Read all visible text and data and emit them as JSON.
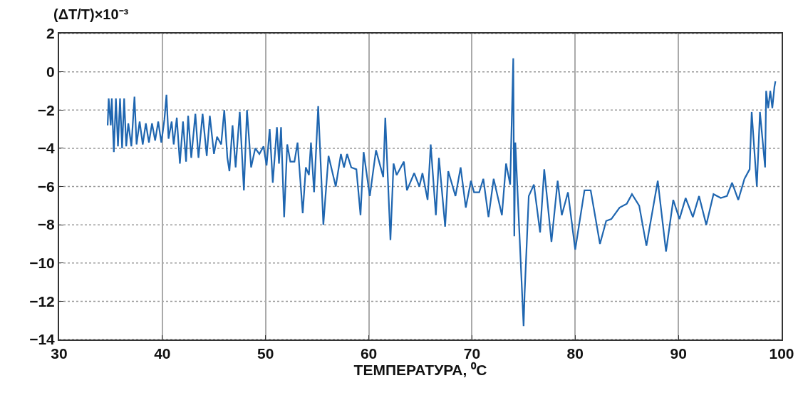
{
  "chart_data": {
    "type": "line",
    "ylabel": "(ΔT/T)×10⁻³",
    "xlabel": "ТЕМПЕРАТУРА, ⁰C",
    "xlim": [
      30,
      100
    ],
    "xticks": [
      30,
      40,
      50,
      60,
      70,
      80,
      90,
      100
    ],
    "ylim": [
      -14,
      2
    ],
    "yticks": [
      -14,
      -12,
      -10,
      -8,
      -6,
      -4,
      -2,
      0,
      2
    ],
    "grid": true,
    "marker": "none",
    "line_style": "solid",
    "series": [
      {
        "color": "#1f66b0",
        "x": [
          34.7,
          34.8,
          35.0,
          35.1,
          35.3,
          35.5,
          35.7,
          35.9,
          36.1,
          36.3,
          36.5,
          36.7,
          37.0,
          37.3,
          37.5,
          37.8,
          38.1,
          38.4,
          38.7,
          39.0,
          39.3,
          39.6,
          39.9,
          40.2,
          40.4,
          40.6,
          40.9,
          41.1,
          41.4,
          41.7,
          42.0,
          42.3,
          42.5,
          42.8,
          43.2,
          43.5,
          43.9,
          44.3,
          44.6,
          45.0,
          45.3,
          45.7,
          46.0,
          46.3,
          46.5,
          46.8,
          47.1,
          47.5,
          47.9,
          48.2,
          48.6,
          49.0,
          49.4,
          49.8,
          50.1,
          50.4,
          50.7,
          51.1,
          51.3,
          51.5,
          51.8,
          52.1,
          52.4,
          52.8,
          53.1,
          53.6,
          53.9,
          54.2,
          54.4,
          54.7,
          55.1,
          55.6,
          56.1,
          56.8,
          57.3,
          57.6,
          57.9,
          58.3,
          58.8,
          59.2,
          59.5,
          60.1,
          60.7,
          61.4,
          61.6,
          62.1,
          62.4,
          62.7,
          63.4,
          63.7,
          64.4,
          64.9,
          65.2,
          65.7,
          66.0,
          66.5,
          66.8,
          67.4,
          67.7,
          68.4,
          68.9,
          69.4,
          69.9,
          70.2,
          70.7,
          71.1,
          71.6,
          72.1,
          72.9,
          73.3,
          73.7,
          74.0,
          74.1,
          74.2,
          75.0,
          75.1,
          75.5,
          76.0,
          76.6,
          77.0,
          77.7,
          78.3,
          78.7,
          79.3,
          80.0,
          80.9,
          81.5,
          82.4,
          83.0,
          83.5,
          84.3,
          85.0,
          85.5,
          86.2,
          86.9,
          88.0,
          88.8,
          89.5,
          90.1,
          90.7,
          91.4,
          92.0,
          92.7,
          93.4,
          94.1,
          94.7,
          95.2,
          95.8,
          96.4,
          96.9,
          97.1,
          97.6,
          97.9,
          98.4,
          98.5,
          98.7,
          98.9,
          99.1,
          99.3,
          99.4
        ],
        "values": [
          -2.8,
          -1.4,
          -2.8,
          -1.4,
          -4.2,
          -1.4,
          -3.9,
          -1.4,
          -4.0,
          -1.4,
          -3.9,
          -2.7,
          -3.9,
          -1.3,
          -3.8,
          -2.6,
          -3.8,
          -2.7,
          -3.7,
          -2.7,
          -3.6,
          -2.6,
          -3.7,
          -2.5,
          -1.2,
          -3.5,
          -2.6,
          -3.8,
          -2.4,
          -4.8,
          -2.6,
          -4.7,
          -2.3,
          -4.5,
          -2.2,
          -4.5,
          -2.2,
          -4.4,
          -2.3,
          -4.3,
          -3.4,
          -3.8,
          -2.0,
          -4.5,
          -5.2,
          -2.8,
          -5.0,
          -2.1,
          -6.2,
          -2.0,
          -5.0,
          -4.0,
          -4.3,
          -3.9,
          -4.9,
          -3.0,
          -5.8,
          -2.9,
          -4.8,
          -2.9,
          -7.6,
          -3.8,
          -4.7,
          -4.7,
          -3.7,
          -7.4,
          -5.0,
          -5.4,
          -3.7,
          -6.3,
          -1.8,
          -8.0,
          -4.4,
          -6.0,
          -4.3,
          -5.0,
          -4.3,
          -5.0,
          -5.1,
          -7.5,
          -4.2,
          -6.5,
          -4.1,
          -5.5,
          -2.4,
          -8.8,
          -4.8,
          -5.4,
          -4.7,
          -6.2,
          -5.3,
          -6.0,
          -5.3,
          -6.7,
          -3.8,
          -7.5,
          -4.5,
          -8.1,
          -5.2,
          -6.5,
          -5.0,
          -7.1,
          -5.7,
          -6.3,
          -6.3,
          -5.6,
          -7.6,
          -5.6,
          -7.5,
          -4.8,
          -5.9,
          0.7,
          -8.6,
          -3.7,
          -13.3,
          -11.6,
          -6.5,
          -5.9,
          -8.4,
          -5.1,
          -8.9,
          -5.7,
          -7.5,
          -6.3,
          -9.3,
          -6.2,
          -6.2,
          -9.0,
          -7.8,
          -7.7,
          -7.1,
          -6.9,
          -6.4,
          -7.0,
          -9.1,
          -5.7,
          -9.4,
          -6.7,
          -7.7,
          -6.6,
          -7.6,
          -6.5,
          -8.0,
          -6.4,
          -6.6,
          -6.5,
          -5.8,
          -6.7,
          -5.6,
          -5.1,
          -2.1,
          -6.0,
          -2.1,
          -5.0,
          -1.0,
          -1.9,
          -1.0,
          -1.9,
          -0.8,
          -0.5
        ]
      }
    ]
  }
}
